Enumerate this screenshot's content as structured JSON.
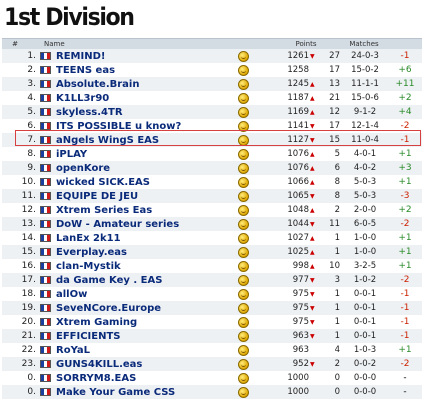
{
  "page_title": "1st Division",
  "columns": {
    "rank": "#",
    "name": "Name",
    "points": "Points",
    "matches": "Matches"
  },
  "colors": {
    "negative": "#cc2200",
    "positive": "#2a8a2a",
    "highlight": "#d64040"
  },
  "icons": {
    "flag": "french-flag-icon",
    "medal": "gold-medal-icon",
    "trend": "down-arrow-icon"
  },
  "highlighted_rank": "7.",
  "rows": [
    {
      "rank": "1.",
      "name": "REMIND!",
      "points": "1261",
      "trend": "▼",
      "matches": "27",
      "record": "24-0-3",
      "diff": "-1",
      "sign": "neg"
    },
    {
      "rank": "2.",
      "name": "TEENS eas",
      "points": "1258",
      "trend": "",
      "matches": "17",
      "record": "15-0-2",
      "diff": "+6",
      "sign": "pos"
    },
    {
      "rank": "3.",
      "name": "Absolute.Brain",
      "points": "1245",
      "trend": "▲",
      "matches": "13",
      "record": "11-1-1",
      "diff": "+11",
      "sign": "pos"
    },
    {
      "rank": "4.",
      "name": "K1LL3r90",
      "points": "1187",
      "trend": "▲",
      "matches": "21",
      "record": "15-0-6",
      "diff": "+2",
      "sign": "pos"
    },
    {
      "rank": "5.",
      "name": "skyless.4TR",
      "points": "1169",
      "trend": "▲",
      "matches": "12",
      "record": "9-1-2",
      "diff": "+4",
      "sign": "pos"
    },
    {
      "rank": "6.",
      "name": "ITS POSSIBLE u know?",
      "points": "1141",
      "trend": "▼",
      "matches": "17",
      "record": "12-1-4",
      "diff": "-2",
      "sign": "neg"
    },
    {
      "rank": "7.",
      "name": "aNgels WingS EAS",
      "points": "1127",
      "trend": "▼",
      "matches": "15",
      "record": "11-0-4",
      "diff": "-1",
      "sign": "neg"
    },
    {
      "rank": "8.",
      "name": "iPLAY",
      "points": "1076",
      "trend": "▲",
      "matches": "5",
      "record": "4-0-1",
      "diff": "+1",
      "sign": "pos"
    },
    {
      "rank": "9.",
      "name": "openKore",
      "points": "1076",
      "trend": "▲",
      "matches": "6",
      "record": "4-0-2",
      "diff": "+3",
      "sign": "pos"
    },
    {
      "rank": "10.",
      "name": "wicked SICK.EAS",
      "points": "1066",
      "trend": "▲",
      "matches": "8",
      "record": "5-0-3",
      "diff": "+1",
      "sign": "pos"
    },
    {
      "rank": "11.",
      "name": "EQUIPE DE JEU",
      "points": "1065",
      "trend": "▼",
      "matches": "8",
      "record": "5-0-3",
      "diff": "-3",
      "sign": "neg"
    },
    {
      "rank": "12.",
      "name": "Xtrem Series Eas",
      "points": "1048",
      "trend": "▲",
      "matches": "2",
      "record": "2-0-0",
      "diff": "+2",
      "sign": "pos"
    },
    {
      "rank": "13.",
      "name": "DoW - Amateur series",
      "points": "1044",
      "trend": "▼",
      "matches": "11",
      "record": "6-0-5",
      "diff": "-2",
      "sign": "neg"
    },
    {
      "rank": "14.",
      "name": "LanEx 2k11",
      "points": "1027",
      "trend": "▲",
      "matches": "1",
      "record": "1-0-0",
      "diff": "+1",
      "sign": "pos"
    },
    {
      "rank": "15.",
      "name": "Everplay.eas",
      "points": "1025",
      "trend": "▲",
      "matches": "1",
      "record": "1-0-0",
      "diff": "+1",
      "sign": "pos"
    },
    {
      "rank": "16.",
      "name": "clan-Mystik",
      "points": "998",
      "trend": "▲",
      "matches": "10",
      "record": "3-2-5",
      "diff": "+1",
      "sign": "pos"
    },
    {
      "rank": "17.",
      "name": "da Game Key . EAS",
      "points": "977",
      "trend": "▼",
      "matches": "3",
      "record": "1-0-2",
      "diff": "-2",
      "sign": "neg"
    },
    {
      "rank": "18.",
      "name": "allOw",
      "points": "975",
      "trend": "▼",
      "matches": "1",
      "record": "0-0-1",
      "diff": "-1",
      "sign": "neg"
    },
    {
      "rank": "19.",
      "name": "SeveNCore.Europe",
      "points": "975",
      "trend": "▼",
      "matches": "1",
      "record": "0-0-1",
      "diff": "-1",
      "sign": "neg"
    },
    {
      "rank": "20.",
      "name": "Xtrem Gaming",
      "points": "975",
      "trend": "▼",
      "matches": "1",
      "record": "0-0-1",
      "diff": "-1",
      "sign": "neg"
    },
    {
      "rank": "21.",
      "name": "EFFICIENTS",
      "points": "963",
      "trend": "▼",
      "matches": "1",
      "record": "0-0-1",
      "diff": "-1",
      "sign": "neg"
    },
    {
      "rank": "22.",
      "name": "RoYaL",
      "points": "963",
      "trend": "",
      "matches": "4",
      "record": "1-0-3",
      "diff": "+1",
      "sign": "pos"
    },
    {
      "rank": "23.",
      "name": "GUNS4KILL.eas",
      "points": "952",
      "trend": "▼",
      "matches": "2",
      "record": "0-0-2",
      "diff": "-2",
      "sign": "neg"
    },
    {
      "rank": "0.",
      "name": "SORRYM8.EAS",
      "points": "1000",
      "trend": "",
      "matches": "0",
      "record": "0-0-0",
      "diff": "-",
      "sign": "neu"
    },
    {
      "rank": "0.",
      "name": "Make Your Game CSS",
      "points": "1000",
      "trend": "",
      "matches": "0",
      "record": "0-0-0",
      "diff": "-",
      "sign": "neu"
    }
  ]
}
